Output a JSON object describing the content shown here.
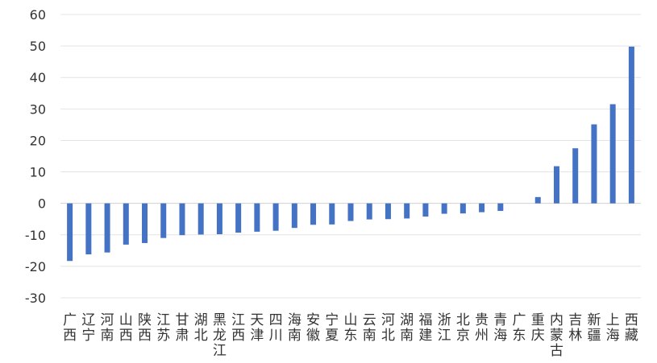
{
  "chart_data": {
    "type": "bar",
    "title": "",
    "xlabel": "",
    "ylabel": "",
    "ylim": [
      -30,
      60
    ],
    "yticks": [
      60,
      50,
      40,
      30,
      20,
      10,
      0,
      -10,
      -20,
      -30
    ],
    "grid": true,
    "legend": "none",
    "bar_color": "#4472C4",
    "categories": [
      "广西",
      "辽宁",
      "河南",
      "山西",
      "陕西",
      "江苏",
      "甘肃",
      "湖北",
      "黑龙江",
      "江西",
      "天津",
      "四川",
      "海南",
      "安徽",
      "宁夏",
      "山东",
      "云南",
      "河北",
      "湖南",
      "福建",
      "浙江",
      "北京",
      "贵州",
      "青海",
      "广东",
      "重庆",
      "内蒙古",
      "吉林",
      "新疆",
      "上海",
      "西藏"
    ],
    "values": [
      -18.3,
      -16.2,
      -15.6,
      -13.1,
      -12.6,
      -11.0,
      -10.1,
      -9.9,
      -9.8,
      -9.3,
      -9.0,
      -8.7,
      -7.8,
      -6.8,
      -6.7,
      -5.6,
      -5.1,
      -5.0,
      -4.8,
      -4.2,
      -3.3,
      -3.2,
      -2.8,
      -2.4,
      0,
      2.0,
      11.8,
      17.5,
      25.1,
      31.5,
      49.8
    ]
  }
}
